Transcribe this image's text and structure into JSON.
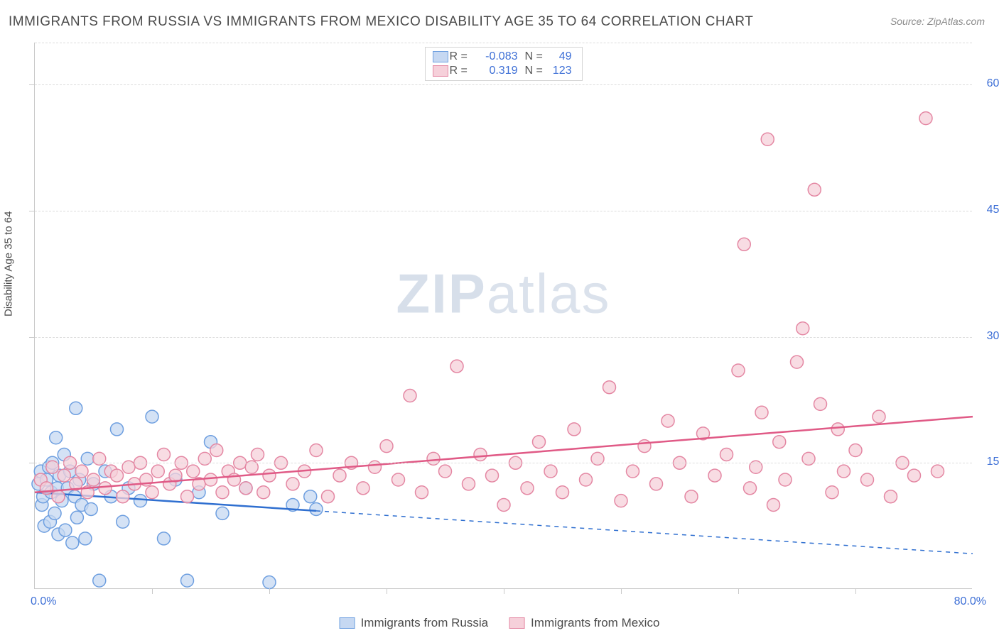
{
  "title": "IMMIGRANTS FROM RUSSIA VS IMMIGRANTS FROM MEXICO DISABILITY AGE 35 TO 64 CORRELATION CHART",
  "source": "Source: ZipAtlas.com",
  "watermark_bold": "ZIP",
  "watermark_thin": "atlas",
  "ylabel": "Disability Age 35 to 64",
  "chart": {
    "type": "scatter",
    "xlim": [
      0,
      80
    ],
    "ylim": [
      0,
      65
    ],
    "x_tick_step": 10,
    "y_ticks": [
      15,
      30,
      45,
      60
    ],
    "y_tick_labels": [
      "15.0%",
      "30.0%",
      "45.0%",
      "60.0%"
    ],
    "x_origin_label": "0.0%",
    "x_max_label": "80.0%",
    "background_color": "#ffffff",
    "grid_color": "#dcdcdc",
    "axis_color": "#c9c9c9",
    "axis_num_color": "#3d6fd6",
    "series": [
      {
        "name": "Immigrants from Russia",
        "marker_fill": "#c6d8f2",
        "marker_stroke": "#6e9fe0",
        "line_color": "#2f6fd0",
        "swatch_fill": "#c6d8f2",
        "swatch_stroke": "#6e9fe0",
        "r_label": "R =",
        "r_value": "-0.083",
        "n_label": "N =",
        "n_value": "49",
        "fit": {
          "x1": 0,
          "y1": 11.5,
          "x2_solid": 24,
          "y2_solid": 9.3,
          "x2": 80,
          "y2": 4.2
        },
        "points": [
          [
            0.3,
            12.5
          ],
          [
            0.5,
            14.0
          ],
          [
            0.6,
            10.0
          ],
          [
            0.7,
            11.0
          ],
          [
            0.8,
            7.5
          ],
          [
            1.0,
            13.0
          ],
          [
            1.2,
            14.5
          ],
          [
            1.3,
            8.0
          ],
          [
            1.4,
            11.5
          ],
          [
            1.5,
            15.0
          ],
          [
            1.7,
            9.0
          ],
          [
            1.8,
            18.0
          ],
          [
            1.9,
            12.0
          ],
          [
            2.0,
            6.5
          ],
          [
            2.1,
            13.5
          ],
          [
            2.3,
            10.5
          ],
          [
            2.5,
            16.0
          ],
          [
            2.6,
            7.0
          ],
          [
            2.8,
            12.0
          ],
          [
            3.0,
            14.0
          ],
          [
            3.2,
            5.5
          ],
          [
            3.4,
            11.0
          ],
          [
            3.5,
            21.5
          ],
          [
            3.6,
            8.5
          ],
          [
            3.8,
            13.0
          ],
          [
            4.0,
            10.0
          ],
          [
            4.3,
            6.0
          ],
          [
            4.5,
            15.5
          ],
          [
            4.8,
            9.5
          ],
          [
            5.0,
            12.5
          ],
          [
            5.5,
            1.0
          ],
          [
            6.0,
            14.0
          ],
          [
            6.5,
            11.0
          ],
          [
            7.0,
            19.0
          ],
          [
            7.5,
            8.0
          ],
          [
            8.0,
            12.0
          ],
          [
            9.0,
            10.5
          ],
          [
            10.0,
            20.5
          ],
          [
            11.0,
            6.0
          ],
          [
            12.0,
            13.0
          ],
          [
            13.0,
            1.0
          ],
          [
            14.0,
            11.5
          ],
          [
            15.0,
            17.5
          ],
          [
            16.0,
            9.0
          ],
          [
            18.0,
            12.0
          ],
          [
            20.0,
            0.8
          ],
          [
            22.0,
            10.0
          ],
          [
            23.5,
            11.0
          ],
          [
            24.0,
            9.5
          ]
        ]
      },
      {
        "name": "Immigrants from Mexico",
        "marker_fill": "#f6d0da",
        "marker_stroke": "#e487a3",
        "line_color": "#e05a86",
        "swatch_fill": "#f6d0da",
        "swatch_stroke": "#e487a3",
        "r_label": "R =",
        "r_value": "0.319",
        "n_label": "N =",
        "n_value": "123",
        "fit": {
          "x1": 0,
          "y1": 11.5,
          "x2_solid": 80,
          "y2_solid": 20.5,
          "x2": 80,
          "y2": 20.5
        },
        "points": [
          [
            0.5,
            13.0
          ],
          [
            1.0,
            12.0
          ],
          [
            1.5,
            14.5
          ],
          [
            2.0,
            11.0
          ],
          [
            2.5,
            13.5
          ],
          [
            3.0,
            15.0
          ],
          [
            3.5,
            12.5
          ],
          [
            4.0,
            14.0
          ],
          [
            4.5,
            11.5
          ],
          [
            5.0,
            13.0
          ],
          [
            5.5,
            15.5
          ],
          [
            6.0,
            12.0
          ],
          [
            6.5,
            14.0
          ],
          [
            7.0,
            13.5
          ],
          [
            7.5,
            11.0
          ],
          [
            8.0,
            14.5
          ],
          [
            8.5,
            12.5
          ],
          [
            9.0,
            15.0
          ],
          [
            9.5,
            13.0
          ],
          [
            10.0,
            11.5
          ],
          [
            10.5,
            14.0
          ],
          [
            11.0,
            16.0
          ],
          [
            11.5,
            12.5
          ],
          [
            12.0,
            13.5
          ],
          [
            12.5,
            15.0
          ],
          [
            13.0,
            11.0
          ],
          [
            13.5,
            14.0
          ],
          [
            14.0,
            12.5
          ],
          [
            14.5,
            15.5
          ],
          [
            15.0,
            13.0
          ],
          [
            15.5,
            16.5
          ],
          [
            16.0,
            11.5
          ],
          [
            16.5,
            14.0
          ],
          [
            17.0,
            13.0
          ],
          [
            17.5,
            15.0
          ],
          [
            18.0,
            12.0
          ],
          [
            18.5,
            14.5
          ],
          [
            19.0,
            16.0
          ],
          [
            19.5,
            11.5
          ],
          [
            20.0,
            13.5
          ],
          [
            21.0,
            15.0
          ],
          [
            22.0,
            12.5
          ],
          [
            23.0,
            14.0
          ],
          [
            24.0,
            16.5
          ],
          [
            25.0,
            11.0
          ],
          [
            26.0,
            13.5
          ],
          [
            27.0,
            15.0
          ],
          [
            28.0,
            12.0
          ],
          [
            29.0,
            14.5
          ],
          [
            30.0,
            17.0
          ],
          [
            31.0,
            13.0
          ],
          [
            32.0,
            23.0
          ],
          [
            33.0,
            11.5
          ],
          [
            34.0,
            15.5
          ],
          [
            35.0,
            14.0
          ],
          [
            36.0,
            26.5
          ],
          [
            37.0,
            12.5
          ],
          [
            38.0,
            16.0
          ],
          [
            39.0,
            13.5
          ],
          [
            40.0,
            10.0
          ],
          [
            41.0,
            15.0
          ],
          [
            42.0,
            12.0
          ],
          [
            43.0,
            17.5
          ],
          [
            44.0,
            14.0
          ],
          [
            45.0,
            11.5
          ],
          [
            46.0,
            19.0
          ],
          [
            47.0,
            13.0
          ],
          [
            48.0,
            15.5
          ],
          [
            49.0,
            24.0
          ],
          [
            50.0,
            10.5
          ],
          [
            51.0,
            14.0
          ],
          [
            52.0,
            17.0
          ],
          [
            53.0,
            12.5
          ],
          [
            54.0,
            20.0
          ],
          [
            55.0,
            15.0
          ],
          [
            56.0,
            11.0
          ],
          [
            57.0,
            18.5
          ],
          [
            58.0,
            13.5
          ],
          [
            59.0,
            16.0
          ],
          [
            60.0,
            26.0
          ],
          [
            60.5,
            41.0
          ],
          [
            61.0,
            12.0
          ],
          [
            61.5,
            14.5
          ],
          [
            62.0,
            21.0
          ],
          [
            62.5,
            53.5
          ],
          [
            63.0,
            10.0
          ],
          [
            63.5,
            17.5
          ],
          [
            64.0,
            13.0
          ],
          [
            65.0,
            27.0
          ],
          [
            65.5,
            31.0
          ],
          [
            66.0,
            15.5
          ],
          [
            66.5,
            47.5
          ],
          [
            67.0,
            22.0
          ],
          [
            68.0,
            11.5
          ],
          [
            68.5,
            19.0
          ],
          [
            69.0,
            14.0
          ],
          [
            70.0,
            16.5
          ],
          [
            71.0,
            13.0
          ],
          [
            72.0,
            20.5
          ],
          [
            73.0,
            11.0
          ],
          [
            74.0,
            15.0
          ],
          [
            75.0,
            13.5
          ],
          [
            76.0,
            56.0
          ],
          [
            77.0,
            14.0
          ]
        ]
      }
    ]
  },
  "legend_bottom": [
    {
      "label": "Immigrants from Russia",
      "fill": "#c6d8f2",
      "stroke": "#6e9fe0"
    },
    {
      "label": "Immigrants from Mexico",
      "fill": "#f6d0da",
      "stroke": "#e487a3"
    }
  ]
}
